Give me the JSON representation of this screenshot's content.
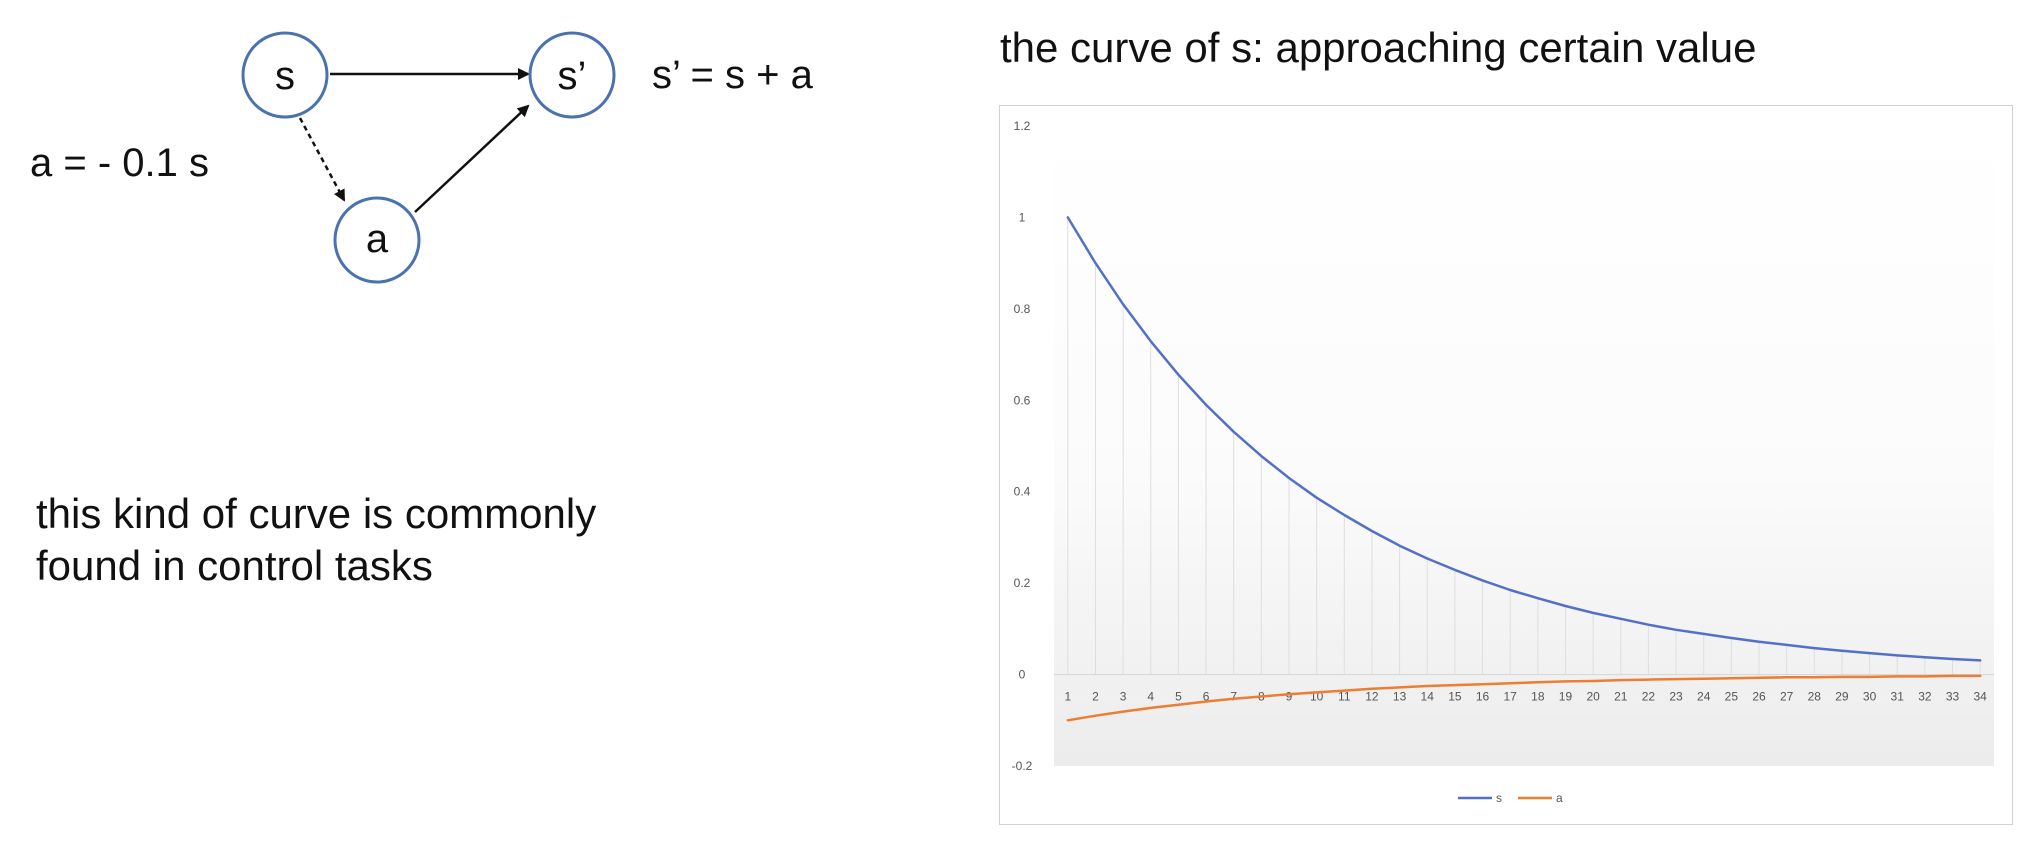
{
  "diagram": {
    "nodes": [
      {
        "id": "s",
        "label": "s"
      },
      {
        "id": "s_prime",
        "label": "s’"
      },
      {
        "id": "a",
        "label": "a"
      }
    ],
    "equations": {
      "transition": "s’ = s + a",
      "action": "a = - 0.1 s"
    }
  },
  "caption": {
    "line1": "this kind of curve is commonly",
    "line2": "found in control tasks"
  },
  "chart_data": {
    "type": "line",
    "title": "the curve of s: approaching certain value",
    "xlabel": "",
    "ylabel": "",
    "x": [
      1,
      2,
      3,
      4,
      5,
      6,
      7,
      8,
      9,
      10,
      11,
      12,
      13,
      14,
      15,
      16,
      17,
      18,
      19,
      20,
      21,
      22,
      23,
      24,
      25,
      26,
      27,
      28,
      29,
      30,
      31,
      32,
      33,
      34
    ],
    "ylim": [
      -0.2,
      1.2
    ],
    "yticks": [
      "1.2",
      "1",
      "0.8",
      "0.6",
      "0.4",
      "0.2",
      "0",
      "-0.2"
    ],
    "series": [
      {
        "name": "s",
        "color": "#5470c6",
        "values": [
          1,
          0.9,
          0.81,
          0.729,
          0.656,
          0.59,
          0.531,
          0.478,
          0.43,
          0.387,
          0.349,
          0.314,
          0.282,
          0.254,
          0.229,
          0.206,
          0.185,
          0.167,
          0.15,
          0.135,
          0.122,
          0.109,
          0.098,
          0.089,
          0.08,
          0.072,
          0.065,
          0.058,
          0.052,
          0.047,
          0.042,
          0.038,
          0.034,
          0.031
        ]
      },
      {
        "name": "a",
        "color": "#ed7d31",
        "values": [
          -0.1,
          -0.09,
          -0.081,
          -0.073,
          -0.066,
          -0.059,
          -0.053,
          -0.048,
          -0.043,
          -0.039,
          -0.035,
          -0.031,
          -0.028,
          -0.025,
          -0.023,
          -0.021,
          -0.019,
          -0.017,
          -0.015,
          -0.014,
          -0.012,
          -0.011,
          -0.01,
          -0.009,
          -0.008,
          -0.007,
          -0.006,
          -0.006,
          -0.005,
          -0.005,
          -0.004,
          -0.004,
          -0.003,
          -0.003
        ]
      }
    ],
    "legend_position": "bottom",
    "grid": false
  }
}
